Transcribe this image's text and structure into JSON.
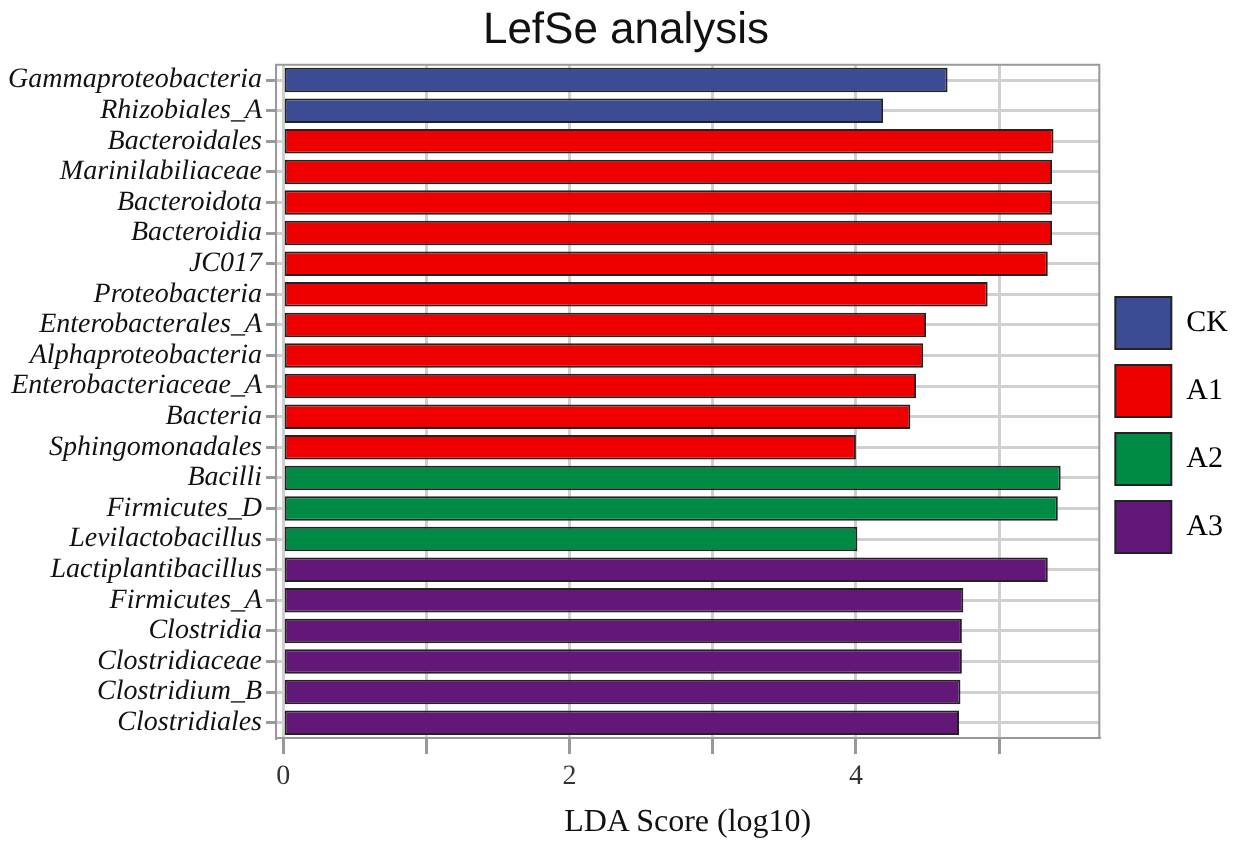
{
  "chart_data": {
    "type": "bar",
    "orientation": "horizontal",
    "title": "LefSe analysis",
    "xlabel": "LDA Score (log10)",
    "categories": [
      "Gammaproteobacteria",
      "Rhizobiales_A",
      "Bacteroidales",
      "Marinilabiliaceae",
      "Bacteroidota",
      "Bacteroidia",
      "JC017",
      "Proteobacteria",
      "Enterobacterales_A",
      "Alphaproteobacteria",
      "Enterobacteriaceae_A",
      "Bacteria",
      "Sphingomonadales",
      "Bacilli",
      "Firmicutes_D",
      "Levilactobacillus",
      "Lactiplantibacillus",
      "Firmicutes_A",
      "Clostridia",
      "Clostridiaceae",
      "Clostridium_B",
      "Clostridiales"
    ],
    "series": [
      {
        "name": "CK",
        "color": "#3c4c94",
        "values": [
          4.64,
          4.19,
          null,
          null,
          null,
          null,
          null,
          null,
          null,
          null,
          null,
          null,
          null,
          null,
          null,
          null,
          null,
          null,
          null,
          null,
          null,
          null
        ]
      },
      {
        "name": "A1",
        "color": "#ee0000",
        "values": [
          null,
          null,
          5.38,
          5.37,
          5.37,
          5.37,
          5.34,
          4.92,
          4.49,
          4.47,
          4.42,
          4.38,
          4.0,
          null,
          null,
          null,
          null,
          null,
          null,
          null,
          null,
          null
        ]
      },
      {
        "name": "A2",
        "color": "#008b45",
        "values": [
          null,
          null,
          null,
          null,
          null,
          null,
          null,
          null,
          null,
          null,
          null,
          null,
          null,
          5.43,
          5.41,
          4.01,
          null,
          null,
          null,
          null,
          null,
          null
        ]
      },
      {
        "name": "A3",
        "color": "#631879",
        "values": [
          null,
          null,
          null,
          null,
          null,
          null,
          null,
          null,
          null,
          null,
          null,
          null,
          null,
          null,
          null,
          null,
          5.34,
          4.75,
          4.74,
          4.74,
          4.73,
          4.72
        ]
      }
    ],
    "xlim": [
      -0.05,
      5.7
    ],
    "xticks": [
      0,
      {
        "value": 1,
        "label": null
      },
      2,
      {
        "value": 3,
        "label": null
      },
      4,
      {
        "value": 5,
        "label": null
      }
    ],
    "grid": true,
    "legend": "right"
  }
}
